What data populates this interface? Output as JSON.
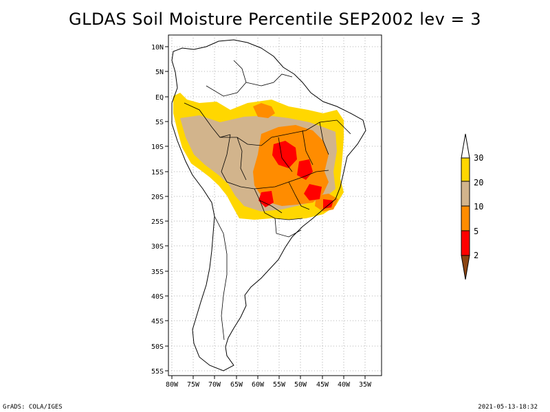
{
  "title": "GLDAS Soil Moisture Percentile SEP2002 lev = 3",
  "footer": {
    "left": "GrADS: COLA/IGES",
    "right": "2021-05-13-18:32"
  },
  "axes": {
    "lat_ticks": [
      "10N",
      "5N",
      "EQ",
      "5S",
      "10S",
      "15S",
      "20S",
      "25S",
      "30S",
      "35S",
      "40S",
      "45S",
      "50S",
      "55S"
    ],
    "lon_ticks": [
      "80W",
      "75W",
      "70W",
      "65W",
      "60W",
      "55W",
      "50W",
      "45W",
      "40W",
      "35W"
    ]
  },
  "legend": {
    "labels": [
      "30",
      "20",
      "10",
      "5",
      "2"
    ],
    "colors": {
      "top_arrow": "#ffffff",
      "c30": "#ffd700",
      "c20": "#d2b48c",
      "c10": "#ff8c00",
      "c5": "#ff0000",
      "bottom_arrow": "#8b4513"
    }
  }
}
